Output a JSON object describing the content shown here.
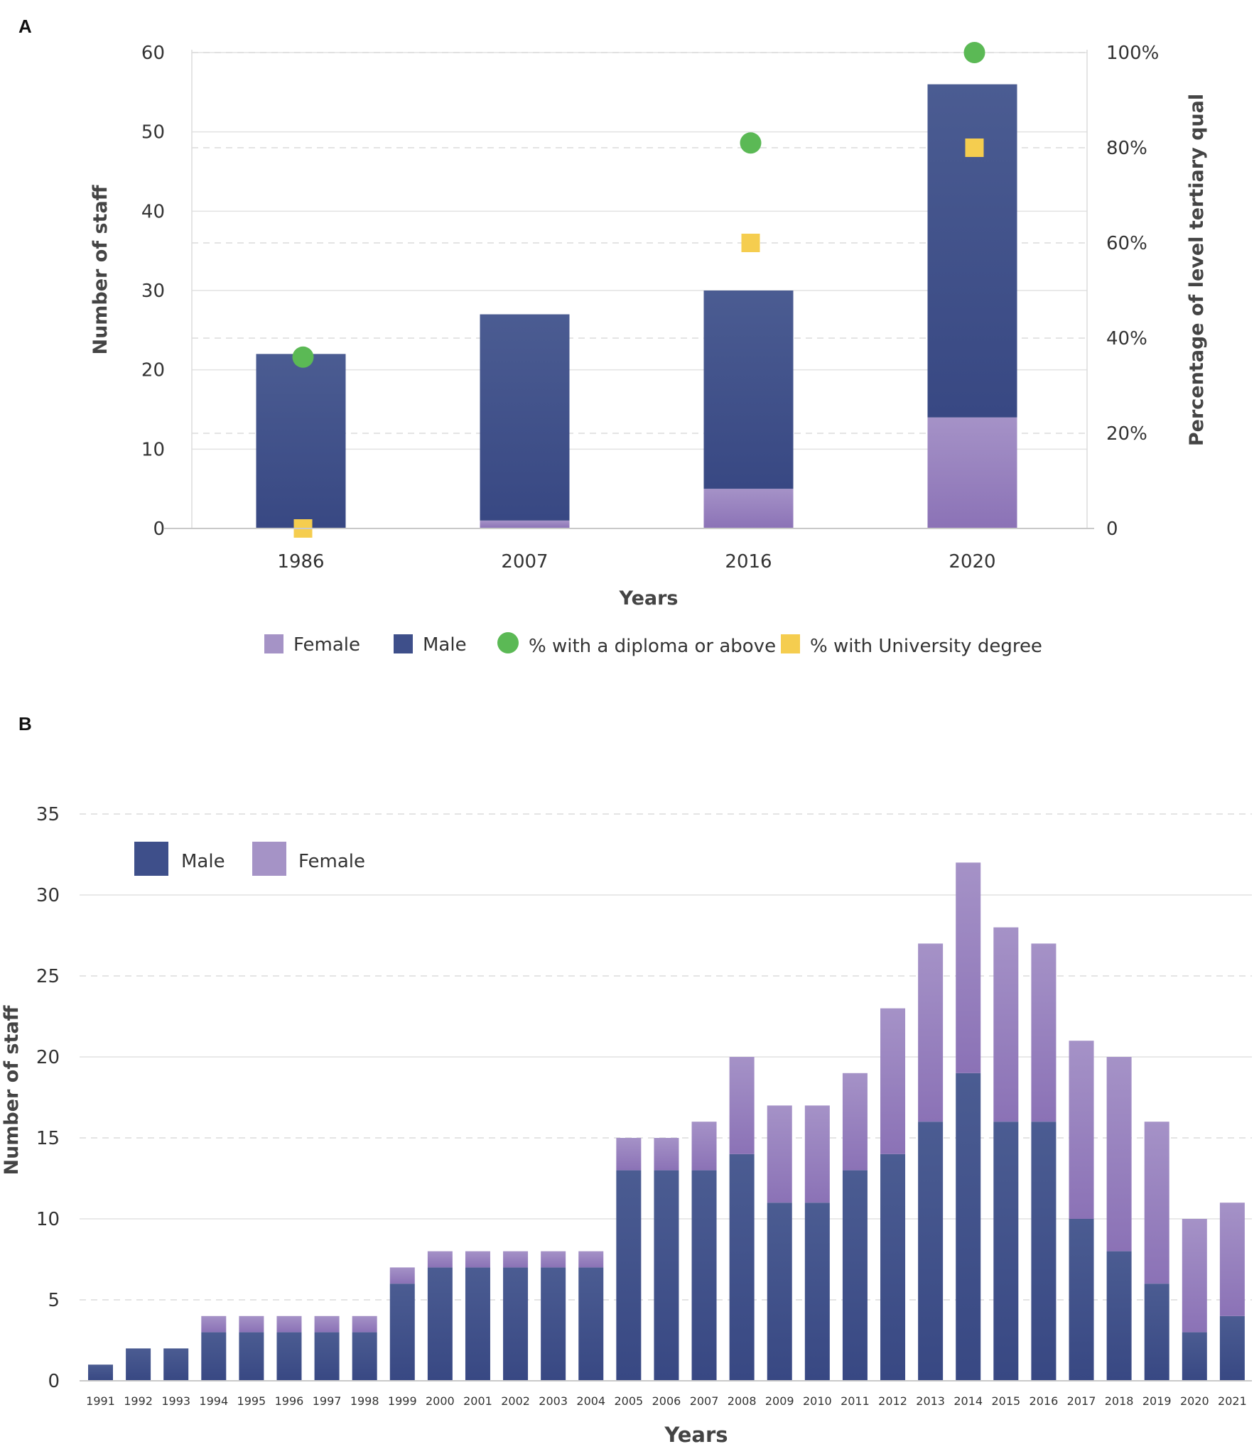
{
  "colors": {
    "male": "#3e4f8a",
    "female": "#9682bc",
    "female_legend": "#a593c6",
    "diploma": "#5bb955",
    "degree": "#f5cd4f"
  },
  "chart_data": [
    {
      "panel": "A",
      "type": "bar",
      "stacked": true,
      "categories": [
        "1986",
        "2007",
        "2016",
        "2020"
      ],
      "series": [
        {
          "name": "Female",
          "values": [
            0,
            1,
            5,
            14
          ]
        },
        {
          "name": "Male",
          "values": [
            22,
            26,
            25,
            42
          ]
        }
      ],
      "overlay": [
        {
          "name": "% with a diploma or above",
          "marker": "circle",
          "axis": "right",
          "points": [
            {
              "x": "1986",
              "y": 36
            },
            {
              "x": "2016",
              "y": 81
            },
            {
              "x": "2020",
              "y": 100
            }
          ]
        },
        {
          "name": "% with University degree",
          "marker": "square",
          "axis": "right",
          "points": [
            {
              "x": "1986",
              "y": 0
            },
            {
              "x": "2016",
              "y": 60
            },
            {
              "x": "2020",
              "y": 80
            }
          ]
        }
      ],
      "xlabel": "Years",
      "ylabel": "Number of staff",
      "y2label": "Percentage of level tertiary qual",
      "ylim": [
        0,
        60
      ],
      "y2lim": [
        0,
        100
      ],
      "yticks": [
        "0",
        "10",
        "20",
        "30",
        "40",
        "50",
        "60"
      ],
      "y2ticks": [
        "0",
        "20%",
        "40%",
        "60%",
        "80%",
        "100%"
      ],
      "legend": [
        "Female",
        "Male",
        "% with a diploma or above",
        "% with University degree"
      ],
      "legend_position": "bottom"
    },
    {
      "panel": "B",
      "type": "bar",
      "stacked": true,
      "categories": [
        "1991",
        "1992",
        "1993",
        "1994",
        "1995",
        "1996",
        "1997",
        "1998",
        "1999",
        "2000",
        "2001",
        "2002",
        "2003",
        "2004",
        "2005",
        "2006",
        "2007",
        "2008",
        "2009",
        "2010",
        "2011",
        "2012",
        "2013",
        "2014",
        "2015",
        "2016",
        "2017",
        "2018",
        "2019",
        "2020",
        "2021"
      ],
      "series": [
        {
          "name": "Male",
          "values": [
            1,
            2,
            2,
            3,
            3,
            3,
            3,
            3,
            6,
            7,
            7,
            7,
            7,
            7,
            13,
            13,
            13,
            14,
            11,
            11,
            13,
            14,
            16,
            19,
            16,
            16,
            10,
            8,
            6,
            3,
            4
          ]
        },
        {
          "name": "Female",
          "values": [
            0,
            0,
            0,
            1,
            1,
            1,
            1,
            1,
            1,
            1,
            1,
            1,
            1,
            1,
            2,
            2,
            3,
            6,
            6,
            6,
            6,
            9,
            11,
            13,
            12,
            11,
            11,
            12,
            10,
            7,
            7
          ]
        }
      ],
      "xlabel": "Years",
      "ylabel": "Number of staff",
      "ylim": [
        0,
        35
      ],
      "yticks": [
        "0",
        "5",
        "10",
        "15",
        "20",
        "25",
        "30",
        "35"
      ],
      "legend": [
        "Male",
        "Female"
      ],
      "legend_position": "top-left"
    }
  ]
}
